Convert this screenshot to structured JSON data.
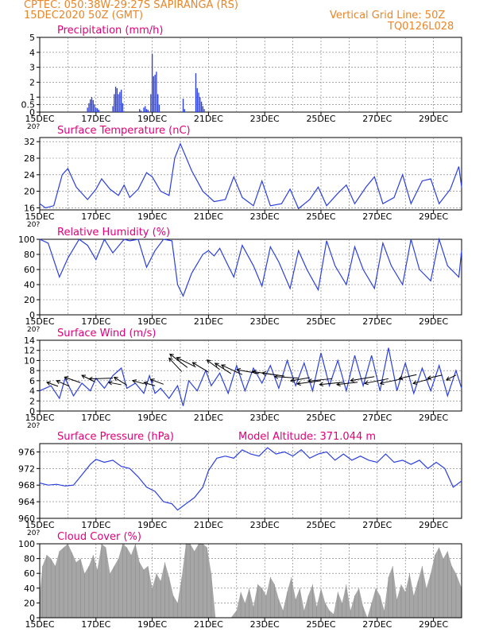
{
  "header": {
    "line1_left": "CPTEC:   050:38W-29:27S   SAPIRANGA (RS)",
    "line2_left": "15DEC2020 50Z (GMT)",
    "line1_right": "Vertical Grid Line: 50Z",
    "line2_right": "TQ0126L028"
  },
  "colors": {
    "header": "#e8862a",
    "panel_title": "#e0007a",
    "series": "#2b3fe0",
    "cloud": "#a6a6a6",
    "grid": "#000000"
  },
  "x_axis": {
    "tick_labels": [
      "15DEC",
      "17DEC",
      "19DEC",
      "21DEC",
      "23DEC",
      "25DEC",
      "27DEC",
      "29DEC"
    ],
    "start_day": 15,
    "end_day": 30,
    "cut_label": "20?"
  },
  "chart_data": [
    {
      "type": "bar",
      "title": "Precipitation (mm/h)",
      "ylim": [
        0,
        5
      ],
      "yticks": [
        0,
        0.5,
        1,
        2,
        3,
        4,
        5
      ],
      "ytick_labels": [
        "0",
        "0.5",
        "1",
        "2",
        "3",
        "4",
        "5"
      ],
      "x_unit": "day of December 2020",
      "points": [
        [
          16.7,
          0.3
        ],
        [
          16.75,
          0.6
        ],
        [
          16.8,
          0.85
        ],
        [
          16.85,
          1.0
        ],
        [
          16.9,
          0.8
        ],
        [
          16.95,
          0.5
        ],
        [
          17.0,
          0.3
        ],
        [
          17.05,
          0.25
        ],
        [
          17.1,
          0.15
        ],
        [
          17.6,
          0.4
        ],
        [
          17.65,
          1.2
        ],
        [
          17.7,
          1.7
        ],
        [
          17.75,
          1.6
        ],
        [
          17.8,
          1.2
        ],
        [
          17.85,
          1.35
        ],
        [
          17.9,
          1.5
        ],
        [
          17.95,
          0.6
        ],
        [
          18.55,
          0.2
        ],
        [
          18.6,
          0.1
        ],
        [
          18.7,
          0.3
        ],
        [
          18.75,
          0.4
        ],
        [
          18.8,
          0.2
        ],
        [
          18.85,
          0.15
        ],
        [
          18.95,
          1.2
        ],
        [
          19.0,
          3.9
        ],
        [
          19.05,
          2.4
        ],
        [
          19.1,
          2.5
        ],
        [
          19.15,
          2.7
        ],
        [
          19.2,
          1.2
        ],
        [
          19.25,
          0.5
        ],
        [
          20.1,
          0.9
        ],
        [
          20.15,
          0.2
        ],
        [
          20.55,
          2.6
        ],
        [
          20.6,
          1.6
        ],
        [
          20.65,
          1.3
        ],
        [
          20.7,
          1.0
        ],
        [
          20.75,
          0.7
        ],
        [
          20.8,
          0.4
        ],
        [
          20.85,
          0.2
        ]
      ]
    },
    {
      "type": "line",
      "title": "Surface Temperature (nC)",
      "ylim": [
        15.5,
        33
      ],
      "yticks": [
        16,
        20,
        24,
        28,
        32
      ],
      "ytick_labels": [
        "16",
        "20",
        "24",
        "28",
        "32"
      ],
      "x": [
        15.0,
        15.2,
        15.5,
        15.8,
        16.0,
        16.3,
        16.7,
        17.0,
        17.2,
        17.5,
        17.8,
        18.0,
        18.2,
        18.5,
        18.8,
        19.0,
        19.3,
        19.6,
        19.8,
        20.0,
        20.4,
        20.8,
        21.2,
        21.6,
        21.9,
        22.2,
        22.6,
        22.9,
        23.2,
        23.6,
        23.9,
        24.2,
        24.6,
        24.9,
        25.2,
        25.6,
        25.9,
        26.2,
        26.6,
        26.9,
        27.2,
        27.6,
        27.9,
        28.2,
        28.6,
        28.9,
        29.2,
        29.6,
        29.9,
        30.0
      ],
      "y": [
        17.0,
        16.0,
        16.5,
        24.0,
        25.5,
        21.0,
        18.0,
        20.5,
        23.0,
        20.5,
        19.0,
        21.5,
        18.5,
        20.5,
        24.5,
        23.5,
        20.0,
        19.0,
        28.0,
        31.5,
        25.0,
        20.0,
        17.5,
        18.0,
        23.5,
        18.5,
        16.5,
        22.5,
        16.5,
        17.0,
        20.5,
        15.8,
        18.0,
        21.0,
        16.5,
        19.5,
        21.5,
        17.0,
        21.0,
        23.5,
        17.0,
        18.5,
        24.0,
        17.0,
        22.5,
        23.0,
        17.0,
        20.5,
        26.0,
        21.0
      ]
    },
    {
      "type": "line",
      "title": "Relative Humidity (%)",
      "ylim": [
        0,
        100
      ],
      "yticks": [
        0,
        20,
        40,
        60,
        80,
        100
      ],
      "ytick_labels": [
        "0",
        "20",
        "40",
        "60",
        "80",
        "100"
      ],
      "x": [
        15.0,
        15.3,
        15.7,
        16.0,
        16.4,
        16.7,
        17.0,
        17.3,
        17.6,
        18.0,
        18.2,
        18.5,
        18.8,
        19.1,
        19.4,
        19.7,
        19.9,
        20.1,
        20.4,
        20.8,
        21.0,
        21.2,
        21.4,
        21.7,
        21.9,
        22.2,
        22.6,
        22.9,
        23.2,
        23.5,
        23.9,
        24.2,
        24.5,
        24.9,
        25.2,
        25.5,
        25.9,
        26.2,
        26.5,
        26.9,
        27.2,
        27.5,
        27.9,
        28.2,
        28.5,
        28.9,
        29.2,
        29.5,
        29.9,
        30.0
      ],
      "y": [
        100,
        95,
        50,
        75,
        100,
        92,
        73,
        100,
        82,
        100,
        98,
        100,
        63,
        85,
        100,
        98,
        40,
        25,
        55,
        80,
        85,
        78,
        88,
        65,
        50,
        92,
        65,
        38,
        90,
        70,
        35,
        85,
        60,
        33,
        98,
        65,
        40,
        90,
        60,
        35,
        95,
        65,
        40,
        100,
        60,
        45,
        100,
        65,
        50,
        85
      ]
    },
    {
      "type": "line",
      "title": "Surface Wind (m/s)",
      "ylim": [
        0,
        14
      ],
      "yticks": [
        0,
        2,
        4,
        6,
        8,
        10,
        12,
        14
      ],
      "ytick_labels": [
        "0",
        "2",
        "4",
        "6",
        "8",
        "10",
        "12",
        "14"
      ],
      "x": [
        15.0,
        15.4,
        15.7,
        15.9,
        16.2,
        16.5,
        16.8,
        17.0,
        17.3,
        17.6,
        17.9,
        18.1,
        18.4,
        18.7,
        18.9,
        19.1,
        19.3,
        19.6,
        19.9,
        20.1,
        20.3,
        20.6,
        20.9,
        21.1,
        21.4,
        21.7,
        22.0,
        22.3,
        22.6,
        22.9,
        23.2,
        23.5,
        23.8,
        24.1,
        24.4,
        24.7,
        25.0,
        25.3,
        25.6,
        25.9,
        26.2,
        26.5,
        26.8,
        27.1,
        27.4,
        27.7,
        28.0,
        28.3,
        28.6,
        28.9,
        29.2,
        29.5,
        29.8,
        30.0
      ],
      "y": [
        4.0,
        5.0,
        2.5,
        6.5,
        3.0,
        5.5,
        4.0,
        6.5,
        4.5,
        7.0,
        8.5,
        4.5,
        5.5,
        3.5,
        7.0,
        3.5,
        4.5,
        2.5,
        5.0,
        1.0,
        6.0,
        4.0,
        8.0,
        5.0,
        7.5,
        3.5,
        9.0,
        4.0,
        8.5,
        5.5,
        9.0,
        4.5,
        10.0,
        5.0,
        9.5,
        4.0,
        11.5,
        5.0,
        10.0,
        4.0,
        11.0,
        5.0,
        11.0,
        4.0,
        12.5,
        4.0,
        9.5,
        3.5,
        8.5,
        4.0,
        9.0,
        3.0,
        8.0,
        4.5
      ],
      "arrows": [
        [
          15.65,
          4.9,
          14,
          5
        ],
        [
          16.05,
          4.9,
          16,
          7
        ],
        [
          16.45,
          5.6,
          20,
          7
        ],
        [
          16.95,
          5.8,
          16,
          8
        ],
        [
          17.6,
          6.5,
          30,
          -1
        ],
        [
          17.9,
          5.2,
          16,
          3
        ],
        [
          18.1,
          5.1,
          16,
          10
        ],
        [
          18.7,
          5.4,
          14,
          4
        ],
        [
          19.1,
          5.0,
          14,
          4
        ],
        [
          19.4,
          5.3,
          16,
          6
        ],
        [
          20.05,
          7.8,
          16,
          17
        ],
        [
          20.25,
          8.6,
          22,
          17
        ],
        [
          20.55,
          8.7,
          24,
          12
        ],
        [
          21.0,
          7.7,
          20,
          12
        ],
        [
          21.4,
          8.2,
          16,
          12
        ],
        [
          21.8,
          7.4,
          20,
          13
        ],
        [
          22.2,
          7.2,
          26,
          12
        ],
        [
          22.8,
          7.4,
          28,
          5
        ],
        [
          23.3,
          7.2,
          26,
          4
        ],
        [
          23.7,
          6.9,
          28,
          4
        ],
        [
          24.2,
          6.5,
          30,
          2
        ],
        [
          24.6,
          6.6,
          24,
          -4
        ],
        [
          25.0,
          6.0,
          30,
          -4
        ],
        [
          25.4,
          6.4,
          30,
          -3
        ],
        [
          25.8,
          5.7,
          30,
          -3
        ],
        [
          26.3,
          5.7,
          26,
          -3
        ],
        [
          26.9,
          6.8,
          30,
          -5
        ],
        [
          27.4,
          6.4,
          30,
          -6
        ],
        [
          27.9,
          6.4,
          28,
          -6
        ],
        [
          28.4,
          7.2,
          22,
          -5
        ],
        [
          28.9,
          6.4,
          22,
          -6
        ],
        [
          29.3,
          7.1,
          18,
          -4
        ],
        [
          29.8,
          7.1,
          12,
          -6
        ]
      ]
    },
    {
      "type": "line",
      "title": "Surface Pressure (hPa)",
      "annotation": "Model Altitude: 371.044 m",
      "ylim": [
        960,
        978
      ],
      "yticks": [
        960,
        964,
        968,
        972,
        976
      ],
      "ytick_labels": [
        "960",
        "964",
        "968",
        "972",
        "976"
      ],
      "x": [
        15.0,
        15.3,
        15.6,
        15.9,
        16.2,
        16.5,
        16.8,
        17.0,
        17.3,
        17.6,
        17.9,
        18.2,
        18.5,
        18.8,
        19.1,
        19.4,
        19.7,
        19.9,
        20.2,
        20.5,
        20.8,
        21.0,
        21.3,
        21.6,
        21.9,
        22.2,
        22.5,
        22.8,
        23.1,
        23.4,
        23.7,
        24.0,
        24.3,
        24.6,
        24.9,
        25.2,
        25.5,
        25.8,
        26.1,
        26.4,
        26.7,
        27.0,
        27.3,
        27.6,
        27.9,
        28.2,
        28.5,
        28.8,
        29.1,
        29.4,
        29.7,
        30.0
      ],
      "y": [
        968.5,
        968.0,
        968.2,
        967.8,
        968.0,
        970.5,
        973.0,
        974.2,
        973.5,
        974.0,
        972.5,
        972.0,
        970.0,
        967.5,
        966.5,
        964.0,
        963.5,
        962.0,
        963.5,
        965.0,
        967.5,
        971.5,
        974.5,
        975.0,
        974.5,
        976.5,
        975.5,
        975.0,
        977.0,
        975.5,
        976.0,
        975.0,
        976.5,
        974.5,
        975.5,
        976.0,
        974.0,
        975.5,
        974.0,
        975.0,
        974.0,
        973.5,
        975.5,
        973.5,
        974.0,
        973.0,
        974.0,
        972.0,
        973.5,
        972.0,
        967.5,
        969.0
      ]
    },
    {
      "type": "area",
      "title": "Cloud Cover (%)",
      "ylim": [
        0,
        100
      ],
      "yticks": [
        0,
        20,
        40,
        60,
        80,
        100
      ],
      "ytick_labels": [
        "0",
        "20",
        "40",
        "60",
        "80",
        "100"
      ],
      "x": [
        15.0,
        15.1,
        15.25,
        15.4,
        15.55,
        15.7,
        15.85,
        16.0,
        16.15,
        16.3,
        16.45,
        16.6,
        16.75,
        16.9,
        17.05,
        17.2,
        17.35,
        17.5,
        17.65,
        17.8,
        17.95,
        18.1,
        18.25,
        18.4,
        18.55,
        18.7,
        18.85,
        19.0,
        19.15,
        19.3,
        19.45,
        19.6,
        19.75,
        19.9,
        20.05,
        20.2,
        20.35,
        20.5,
        20.65,
        20.8,
        20.95,
        21.1,
        21.25,
        21.4,
        21.6,
        21.8,
        22.0,
        22.15,
        22.3,
        22.45,
        22.6,
        22.75,
        22.9,
        23.05,
        23.2,
        23.35,
        23.5,
        23.65,
        23.8,
        23.95,
        24.1,
        24.25,
        24.4,
        24.55,
        24.7,
        24.85,
        25.0,
        25.15,
        25.3,
        25.45,
        25.6,
        25.75,
        25.9,
        26.05,
        26.2,
        26.35,
        26.5,
        26.65,
        26.8,
        26.95,
        27.1,
        27.25,
        27.4,
        27.55,
        27.7,
        27.85,
        28.0,
        28.15,
        28.3,
        28.45,
        28.6,
        28.75,
        28.9,
        29.05,
        29.2,
        29.35,
        29.5,
        29.65,
        29.8,
        30.0
      ],
      "y": [
        30,
        70,
        85,
        80,
        70,
        90,
        95,
        100,
        88,
        75,
        80,
        60,
        70,
        85,
        65,
        100,
        95,
        60,
        70,
        80,
        100,
        95,
        85,
        100,
        75,
        65,
        70,
        40,
        60,
        50,
        75,
        55,
        30,
        20,
        55,
        100,
        100,
        90,
        100,
        100,
        95,
        60,
        0,
        0,
        0,
        0,
        10,
        35,
        20,
        40,
        15,
        45,
        40,
        30,
        55,
        45,
        25,
        10,
        35,
        55,
        25,
        40,
        10,
        30,
        45,
        15,
        40,
        20,
        10,
        5,
        35,
        20,
        45,
        10,
        30,
        40,
        15,
        0,
        20,
        40,
        30,
        10,
        55,
        70,
        25,
        45,
        35,
        60,
        30,
        50,
        70,
        40,
        60,
        85,
        95,
        80,
        90,
        70,
        60,
        40
      ]
    }
  ]
}
